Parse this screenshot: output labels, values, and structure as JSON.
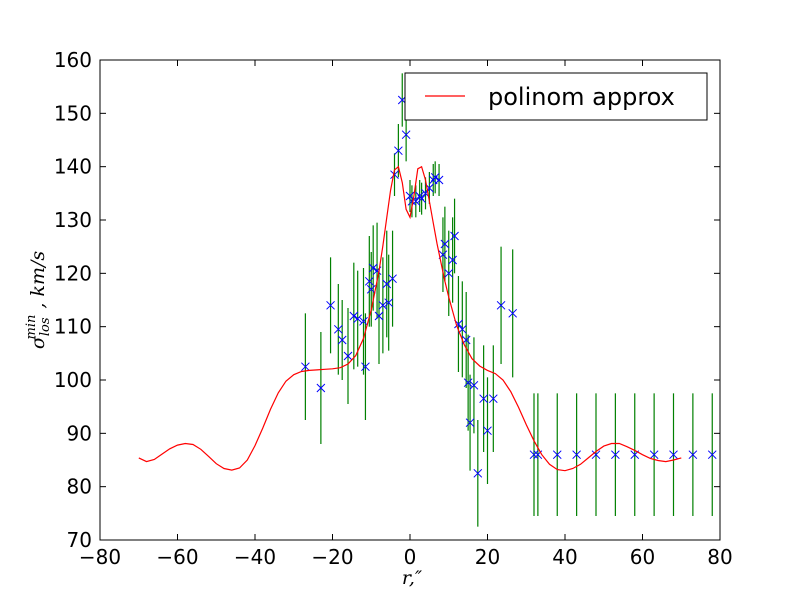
{
  "chart_data": {
    "type": "scatter",
    "xlabel": "r,″",
    "ylabel": "σ_los^min , km/s",
    "ylabel_parts": {
      "sigma": "σ",
      "sup": "min",
      "sub": "los",
      "rest": ", km/s"
    },
    "xlabel_parts": {
      "main": "r,",
      "rest": "″"
    },
    "xlim": [
      -80,
      80
    ],
    "ylim": [
      70,
      160
    ],
    "x_ticks": [
      -80,
      -60,
      -40,
      -20,
      0,
      20,
      40,
      60,
      80
    ],
    "x_tick_labels": [
      "−80",
      "−60",
      "−40",
      "−20",
      "0",
      "20",
      "40",
      "60",
      "80"
    ],
    "y_ticks": [
      70,
      80,
      90,
      100,
      110,
      120,
      130,
      140,
      150,
      160
    ],
    "y_tick_labels": [
      "70",
      "80",
      "90",
      "100",
      "110",
      "120",
      "130",
      "140",
      "150",
      "160"
    ],
    "grid": false,
    "legend": {
      "placement": "top-right",
      "entries": [
        "polinom approx"
      ]
    },
    "series": [
      {
        "kind": "errorbar",
        "color": "#0000ff",
        "errcolor": "#008000",
        "marker": "x",
        "points": [
          {
            "x": -27,
            "y": 102.5,
            "err": 10
          },
          {
            "x": -23,
            "y": 98.5,
            "err": 10.5
          },
          {
            "x": -20.5,
            "y": 114,
            "err": 9
          },
          {
            "x": -18.5,
            "y": 109.5,
            "err": 8.5
          },
          {
            "x": -17.5,
            "y": 107.5,
            "err": 7.5
          },
          {
            "x": -16,
            "y": 104.5,
            "err": 9
          },
          {
            "x": -14.5,
            "y": 112,
            "err": 10
          },
          {
            "x": -13.5,
            "y": 111.5,
            "err": 9
          },
          {
            "x": -12,
            "y": 111,
            "err": 10
          },
          {
            "x": -11.5,
            "y": 102.5,
            "err": 10
          },
          {
            "x": -10.5,
            "y": 118.5,
            "err": 8.5
          },
          {
            "x": -10,
            "y": 117,
            "err": 7
          },
          {
            "x": -9.5,
            "y": 121,
            "err": 8
          },
          {
            "x": -8.5,
            "y": 120.5,
            "err": 9
          },
          {
            "x": -8,
            "y": 112,
            "err": 9
          },
          {
            "x": -7,
            "y": 114,
            "err": 9
          },
          {
            "x": -6,
            "y": 118,
            "err": 10
          },
          {
            "x": -5.5,
            "y": 114.5,
            "err": 9
          },
          {
            "x": -4.5,
            "y": 119,
            "err": 9
          },
          {
            "x": -4,
            "y": 138.5,
            "err": 4
          },
          {
            "x": -3,
            "y": 143,
            "err": 5
          },
          {
            "x": -2,
            "y": 152.5,
            "err": 5
          },
          {
            "x": -1,
            "y": 146,
            "err": 5
          },
          {
            "x": 0,
            "y": 134.5,
            "err": 3
          },
          {
            "x": 0.5,
            "y": 133.5,
            "err": 3
          },
          {
            "x": 1.5,
            "y": 133.5,
            "err": 3
          },
          {
            "x": 2.5,
            "y": 134.5,
            "err": 3
          },
          {
            "x": 3,
            "y": 134,
            "err": 3
          },
          {
            "x": 4,
            "y": 135,
            "err": 3
          },
          {
            "x": 5,
            "y": 136,
            "err": 3
          },
          {
            "x": 6,
            "y": 137.5,
            "err": 3
          },
          {
            "x": 6.5,
            "y": 138,
            "err": 3
          },
          {
            "x": 7.5,
            "y": 137.5,
            "err": 3
          },
          {
            "x": 8.5,
            "y": 123.5,
            "err": 7
          },
          {
            "x": 9,
            "y": 125.5,
            "err": 7
          },
          {
            "x": 10,
            "y": 120,
            "err": 8
          },
          {
            "x": 11,
            "y": 122.5,
            "err": 8
          },
          {
            "x": 11.5,
            "y": 127,
            "err": 7
          },
          {
            "x": 12.5,
            "y": 110.5,
            "err": 9
          },
          {
            "x": 13.5,
            "y": 109.5,
            "err": 9
          },
          {
            "x": 14.5,
            "y": 107.5,
            "err": 9
          },
          {
            "x": 15,
            "y": 99.5,
            "err": 9
          },
          {
            "x": 15.5,
            "y": 92,
            "err": 9
          },
          {
            "x": 16.5,
            "y": 99,
            "err": 9
          },
          {
            "x": 17.5,
            "y": 82.5,
            "err": 10
          },
          {
            "x": 19,
            "y": 96.5,
            "err": 10
          },
          {
            "x": 20,
            "y": 90.5,
            "err": 10
          },
          {
            "x": 21.5,
            "y": 96.5,
            "err": 10
          },
          {
            "x": 23.5,
            "y": 114,
            "err": 11
          },
          {
            "x": 26.5,
            "y": 112.5,
            "err": 12
          },
          {
            "x": 32,
            "y": 86,
            "err": 11.5
          },
          {
            "x": 33,
            "y": 86,
            "err": 11.5
          },
          {
            "x": 38,
            "y": 86,
            "err": 11.5
          },
          {
            "x": 43,
            "y": 86,
            "err": 11.5
          },
          {
            "x": 48,
            "y": 86,
            "err": 11.5
          },
          {
            "x": 53,
            "y": 86,
            "err": 11.5
          },
          {
            "x": 58,
            "y": 86,
            "err": 11.5
          },
          {
            "x": 63,
            "y": 86,
            "err": 11.5
          },
          {
            "x": 68,
            "y": 86,
            "err": 11.5
          },
          {
            "x": 73,
            "y": 86,
            "err": 11.5
          },
          {
            "x": 78,
            "y": 86,
            "err": 11.5
          }
        ]
      },
      {
        "kind": "line",
        "name": "polinom approx",
        "color": "#ff0000",
        "x": [
          -70,
          -68,
          -66,
          -64,
          -62,
          -60,
          -58,
          -56,
          -54,
          -52,
          -50,
          -48,
          -46,
          -44,
          -42,
          -40,
          -38,
          -36,
          -34,
          -32,
          -30,
          -28,
          -26,
          -24,
          -22,
          -20,
          -18,
          -16,
          -14,
          -12,
          -10,
          -8,
          -7,
          -6,
          -5,
          -4,
          -3,
          -2,
          -1,
          0,
          1,
          2,
          3,
          4,
          5,
          6,
          7,
          8,
          9,
          10,
          12,
          14,
          16,
          18,
          20,
          22,
          24,
          26,
          28,
          30,
          32,
          34,
          36,
          38,
          40,
          42,
          44,
          46,
          48,
          50,
          52,
          54,
          56,
          58,
          60,
          62,
          64,
          66,
          68,
          70
        ],
        "y": [
          85.4,
          84.7,
          85.1,
          86.1,
          87.1,
          87.8,
          88.1,
          87.9,
          87.0,
          85.7,
          84.3,
          83.4,
          83.1,
          83.5,
          85.0,
          87.7,
          91.0,
          94.5,
          97.6,
          99.8,
          101.0,
          101.6,
          101.8,
          101.9,
          102.0,
          102.1,
          102.3,
          103.0,
          104.6,
          107.8,
          113.2,
          120.4,
          125.2,
          130.5,
          135.6,
          139.4,
          140.0,
          137.0,
          132.0,
          130.5,
          134.5,
          139.6,
          140.0,
          137.5,
          133.5,
          129.4,
          125.5,
          122.0,
          118.5,
          115.5,
          110.3,
          106.6,
          104.0,
          102.6,
          101.8,
          101.2,
          100.0,
          97.8,
          94.9,
          91.6,
          88.6,
          86.0,
          84.2,
          83.2,
          83.0,
          83.4,
          84.2,
          85.4,
          86.6,
          87.6,
          88.1,
          88.1,
          87.5,
          86.8,
          86.0,
          85.3,
          84.9,
          84.7,
          85.0,
          85.4
        ]
      }
    ]
  }
}
